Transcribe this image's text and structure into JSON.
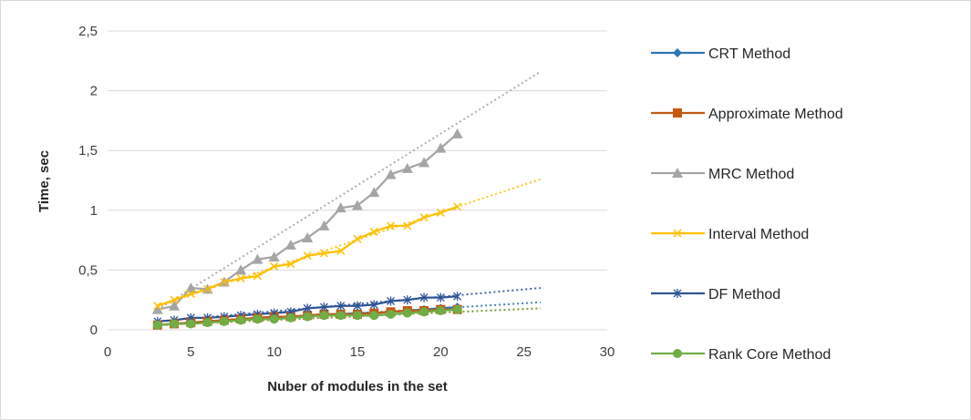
{
  "chart_data": {
    "type": "line",
    "title": "",
    "xlabel": "Nuber of modules in the set",
    "ylabel": "Time, sec",
    "xlim": [
      0,
      30
    ],
    "ylim": [
      0,
      2.5
    ],
    "x_ticks": [
      0,
      5,
      10,
      15,
      20,
      25,
      30
    ],
    "y_ticks": [
      0,
      0.5,
      1,
      1.5,
      2,
      2.5
    ],
    "x_tick_labels": [
      "0",
      "5",
      "10",
      "15",
      "20",
      "25",
      "30"
    ],
    "y_tick_labels": [
      "0",
      "0,5",
      "1",
      "1,5",
      "2",
      "2,5"
    ],
    "grid": "horizontal",
    "legend_position": "right",
    "x": [
      3,
      4,
      5,
      6,
      7,
      8,
      9,
      10,
      11,
      12,
      13,
      14,
      15,
      16,
      17,
      18,
      19,
      20,
      21
    ],
    "trendline_x_end": 26,
    "series": [
      {
        "name": "CRT Method",
        "color": "#2e75b6",
        "marker": "diamond",
        "values": [
          0.04,
          0.05,
          0.06,
          0.07,
          0.08,
          0.09,
          0.1,
          0.11,
          0.11,
          0.12,
          0.13,
          0.13,
          0.14,
          0.14,
          0.15,
          0.16,
          0.17,
          0.18,
          0.19
        ],
        "trendline_end": 0.23
      },
      {
        "name": "Approximate Method",
        "color": "#c55a11",
        "marker": "square",
        "values": [
          0.04,
          0.05,
          0.06,
          0.07,
          0.08,
          0.09,
          0.1,
          0.11,
          0.11,
          0.12,
          0.13,
          0.13,
          0.13,
          0.14,
          0.15,
          0.16,
          0.16,
          0.17,
          0.17
        ],
        "trendline_end": 0.18
      },
      {
        "name": "MRC Method",
        "color": "#a5a5a5",
        "marker": "triangle",
        "values": [
          0.17,
          0.2,
          0.35,
          0.34,
          0.4,
          0.5,
          0.59,
          0.61,
          0.71,
          0.77,
          0.87,
          1.02,
          1.04,
          1.15,
          1.3,
          1.35,
          1.4,
          1.52,
          1.64
        ],
        "trendline_end": 2.16
      },
      {
        "name": "Interval Method",
        "color": "#ffc000",
        "marker": "x",
        "values": [
          0.2,
          0.25,
          0.3,
          0.34,
          0.4,
          0.43,
          0.45,
          0.53,
          0.55,
          0.62,
          0.64,
          0.66,
          0.76,
          0.82,
          0.87,
          0.87,
          0.94,
          0.98,
          1.03
        ],
        "trendline_end": 1.26
      },
      {
        "name": "DF Method",
        "color": "#2f5597",
        "marker": "star",
        "values": [
          0.07,
          0.08,
          0.1,
          0.1,
          0.11,
          0.12,
          0.13,
          0.14,
          0.15,
          0.18,
          0.19,
          0.2,
          0.2,
          0.21,
          0.24,
          0.25,
          0.27,
          0.27,
          0.28
        ],
        "trendline_end": 0.35
      },
      {
        "name": "Rank Core Method",
        "color": "#70ad47",
        "marker": "circle",
        "values": [
          0.04,
          0.05,
          0.05,
          0.06,
          0.07,
          0.08,
          0.09,
          0.09,
          0.1,
          0.11,
          0.12,
          0.12,
          0.12,
          0.12,
          0.13,
          0.14,
          0.15,
          0.16,
          0.17
        ],
        "trendline_end": 0.18
      }
    ]
  }
}
